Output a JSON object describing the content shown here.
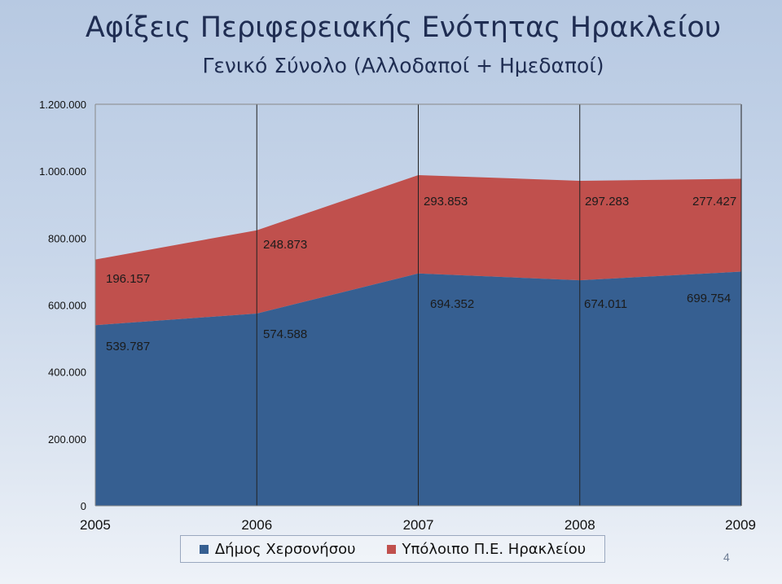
{
  "slide": {
    "title": "Αφίξεις Περιφερειακής Ενότητας Ηρακλείου",
    "subtitle": "Γενικό Σύνολο (Αλλοδαποί + Ημεδαποί)",
    "page_number": "4"
  },
  "chart_data": {
    "type": "area",
    "stacked": true,
    "categories": [
      "2005",
      "2006",
      "2007",
      "2008",
      "2009"
    ],
    "series": [
      {
        "name": "Δήμος Χερσονήσου",
        "values": [
          539787,
          574588,
          694352,
          674011,
          699754
        ],
        "labels": [
          "539.787",
          "574.588",
          "694.352",
          "674.011",
          "699.754"
        ],
        "color": "#365f91"
      },
      {
        "name": "Υπόλοιπο Π.Ε. Ηρακλείου",
        "values": [
          196157,
          248873,
          293853,
          297283,
          277427
        ],
        "labels": [
          "196.157",
          "248.873",
          "293.853",
          "297.283",
          "277.427"
        ],
        "color": "#c0504d"
      }
    ],
    "ylim": [
      0,
      1200000
    ],
    "y_ticks": [
      {
        "value": 0,
        "label": "0"
      },
      {
        "value": 200000,
        "label": "200.000"
      },
      {
        "value": 400000,
        "label": "400.000"
      },
      {
        "value": 600000,
        "label": "600.000"
      },
      {
        "value": 800000,
        "label": "800.000"
      },
      {
        "value": 1000000,
        "label": "1.000.000"
      },
      {
        "value": 1200000,
        "label": "1.200.000"
      }
    ],
    "grid": "vertical",
    "legend_position": "bottom"
  }
}
